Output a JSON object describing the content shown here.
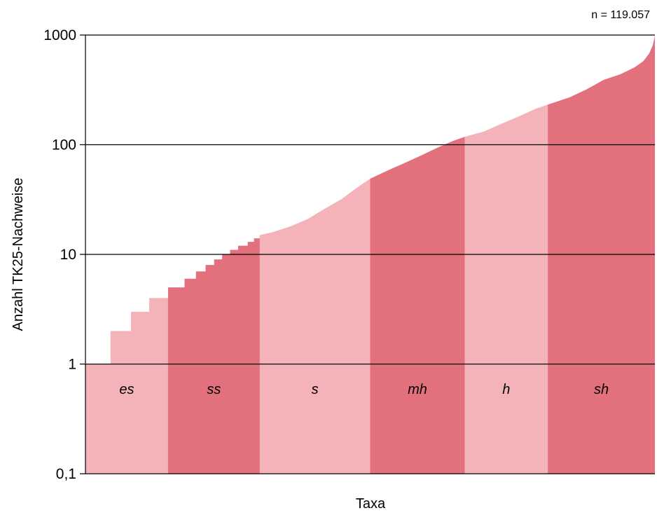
{
  "chart_data": {
    "type": "area",
    "title": "",
    "annotation": "n = 119.057",
    "xlabel": "Taxa",
    "ylabel": "Anzahl TK25-Nachweise",
    "y_scale": "log",
    "ylim": [
      0.1,
      1000
    ],
    "y_ticks": [
      {
        "value": 0.1,
        "label": "0,1"
      },
      {
        "value": 1,
        "label": "1"
      },
      {
        "value": 10,
        "label": "10"
      },
      {
        "value": 100,
        "label": "100"
      },
      {
        "value": 1000,
        "label": "1000"
      }
    ],
    "grid": "horizontal",
    "x_range_fraction": [
      0,
      1
    ],
    "bands": [
      {
        "label": "es",
        "start": 0.0,
        "end": 0.145,
        "color": "#f4b3b8"
      },
      {
        "label": "ss",
        "start": 0.145,
        "end": 0.306,
        "color": "#e3717d"
      },
      {
        "label": "s",
        "start": 0.306,
        "end": 0.5,
        "color": "#f4b3b8"
      },
      {
        "label": "mh",
        "start": 0.5,
        "end": 0.666,
        "color": "#e3717d"
      },
      {
        "label": "h",
        "start": 0.666,
        "end": 0.812,
        "color": "#f4b3b8"
      },
      {
        "label": "sh",
        "start": 0.812,
        "end": 1.0,
        "color": "#e3717d"
      }
    ],
    "curve": [
      {
        "x": 0.0,
        "y": 1
      },
      {
        "x": 0.044,
        "y": 1
      },
      {
        "x": 0.044,
        "y": 2
      },
      {
        "x": 0.08,
        "y": 2
      },
      {
        "x": 0.08,
        "y": 3
      },
      {
        "x": 0.112,
        "y": 3
      },
      {
        "x": 0.112,
        "y": 4
      },
      {
        "x": 0.145,
        "y": 4
      },
      {
        "x": 0.145,
        "y": 5
      },
      {
        "x": 0.174,
        "y": 5
      },
      {
        "x": 0.174,
        "y": 6
      },
      {
        "x": 0.194,
        "y": 6
      },
      {
        "x": 0.194,
        "y": 7
      },
      {
        "x": 0.211,
        "y": 7
      },
      {
        "x": 0.211,
        "y": 8
      },
      {
        "x": 0.226,
        "y": 8
      },
      {
        "x": 0.226,
        "y": 9
      },
      {
        "x": 0.24,
        "y": 9
      },
      {
        "x": 0.24,
        "y": 10
      },
      {
        "x": 0.254,
        "y": 10
      },
      {
        "x": 0.254,
        "y": 11
      },
      {
        "x": 0.268,
        "y": 11
      },
      {
        "x": 0.268,
        "y": 12
      },
      {
        "x": 0.285,
        "y": 12
      },
      {
        "x": 0.285,
        "y": 13
      },
      {
        "x": 0.296,
        "y": 13
      },
      {
        "x": 0.296,
        "y": 14
      },
      {
        "x": 0.306,
        "y": 14
      },
      {
        "x": 0.306,
        "y": 15
      },
      {
        "x": 0.33,
        "y": 16
      },
      {
        "x": 0.36,
        "y": 18
      },
      {
        "x": 0.39,
        "y": 21
      },
      {
        "x": 0.42,
        "y": 26
      },
      {
        "x": 0.45,
        "y": 32
      },
      {
        "x": 0.475,
        "y": 40
      },
      {
        "x": 0.5,
        "y": 49
      },
      {
        "x": 0.53,
        "y": 58
      },
      {
        "x": 0.56,
        "y": 68
      },
      {
        "x": 0.59,
        "y": 80
      },
      {
        "x": 0.62,
        "y": 95
      },
      {
        "x": 0.645,
        "y": 108
      },
      {
        "x": 0.666,
        "y": 118
      },
      {
        "x": 0.7,
        "y": 132
      },
      {
        "x": 0.73,
        "y": 155
      },
      {
        "x": 0.76,
        "y": 180
      },
      {
        "x": 0.79,
        "y": 212
      },
      {
        "x": 0.812,
        "y": 232
      },
      {
        "x": 0.85,
        "y": 270
      },
      {
        "x": 0.88,
        "y": 320
      },
      {
        "x": 0.91,
        "y": 390
      },
      {
        "x": 0.94,
        "y": 440
      },
      {
        "x": 0.965,
        "y": 510
      },
      {
        "x": 0.98,
        "y": 580
      },
      {
        "x": 0.99,
        "y": 680
      },
      {
        "x": 0.996,
        "y": 800
      },
      {
        "x": 1.0,
        "y": 980
      }
    ]
  }
}
